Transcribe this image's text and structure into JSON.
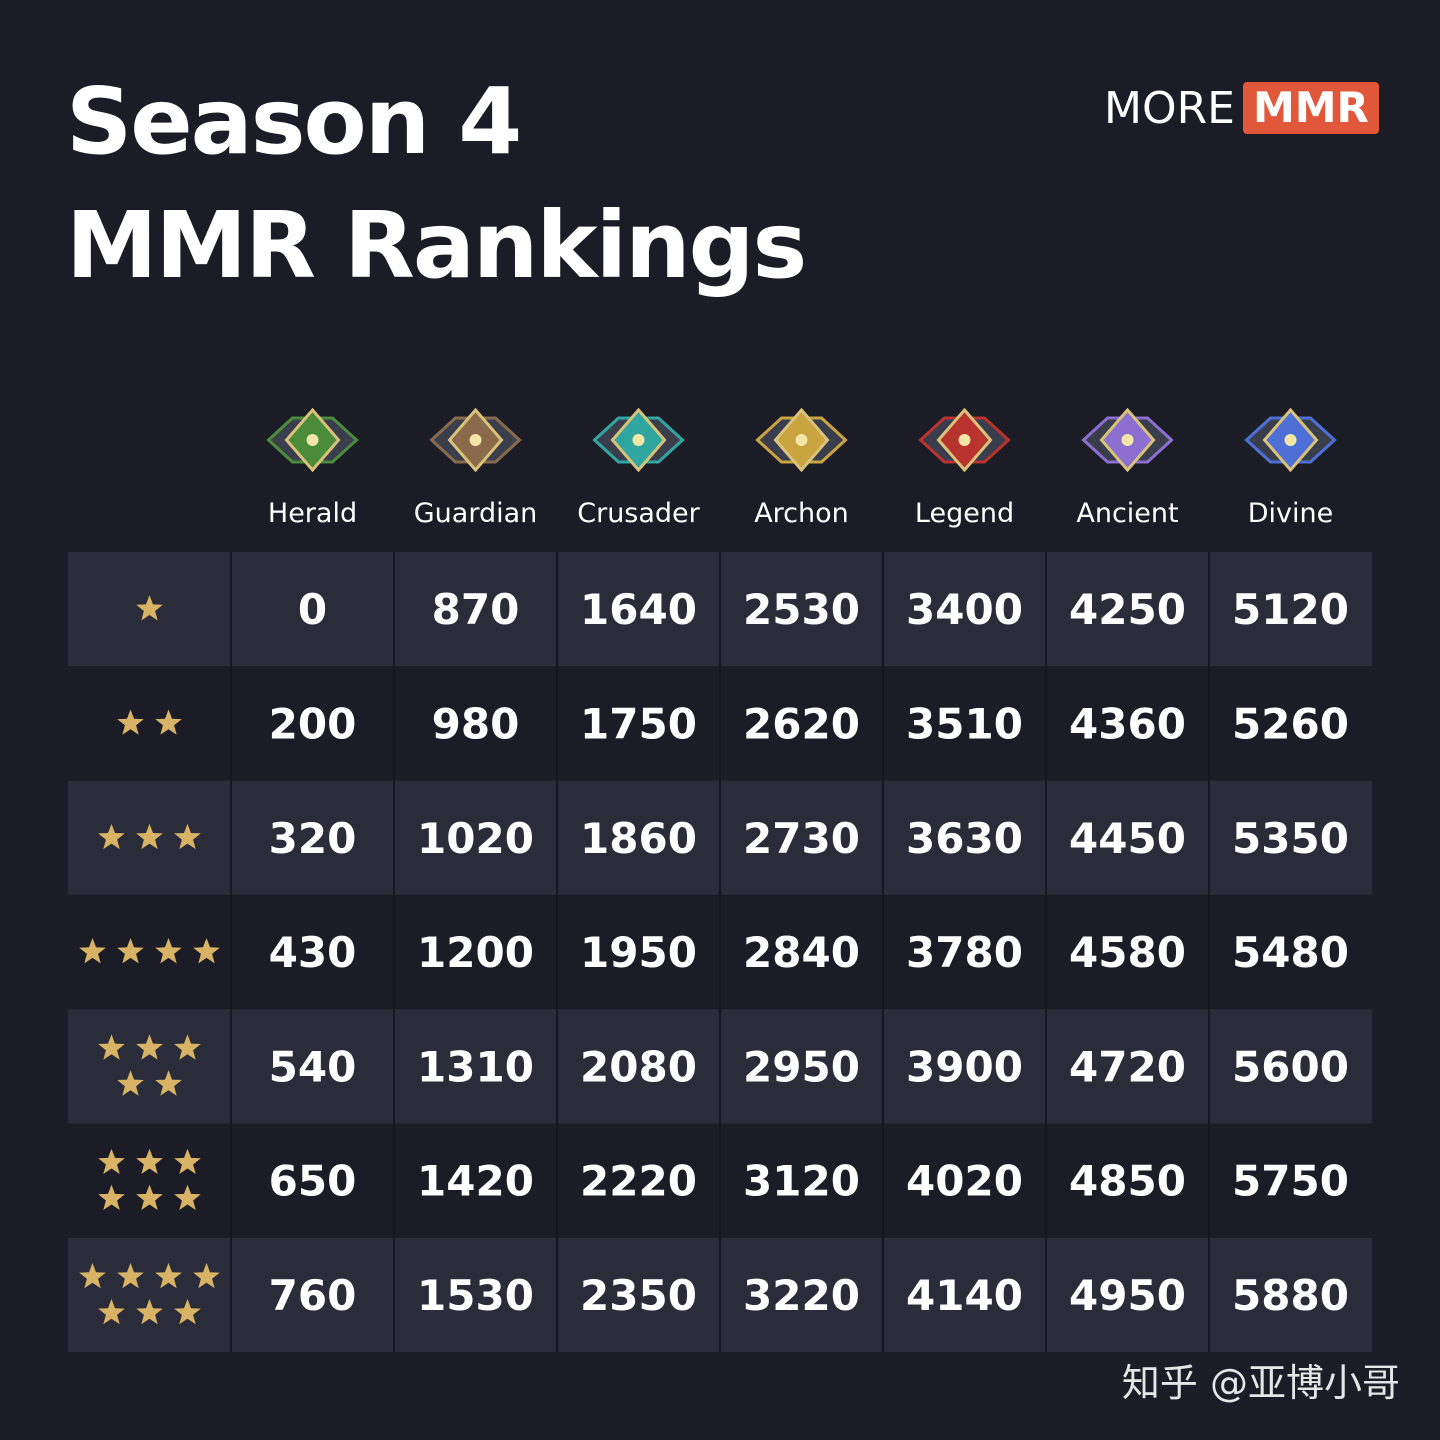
{
  "header": {
    "title_line1": "Season 4",
    "title_line2": "MMR Rankings",
    "logo_word": "MORE",
    "logo_badge": "MMR"
  },
  "table": {
    "columns": [
      "Herald",
      "Guardian",
      "Crusader",
      "Archon",
      "Legend",
      "Ancient",
      "Divine"
    ],
    "stars": [
      1,
      2,
      3,
      4,
      5,
      6,
      7
    ],
    "rows": [
      [
        "0",
        "870",
        "1640",
        "2530",
        "3400",
        "4250",
        "5120"
      ],
      [
        "200",
        "980",
        "1750",
        "2620",
        "3510",
        "4360",
        "5260"
      ],
      [
        "320",
        "1020",
        "1860",
        "2730",
        "3630",
        "4450",
        "5350"
      ],
      [
        "430",
        "1200",
        "1950",
        "2840",
        "3780",
        "4580",
        "5480"
      ],
      [
        "540",
        "1310",
        "2080",
        "2950",
        "3900",
        "4720",
        "5600"
      ],
      [
        "650",
        "1420",
        "2220",
        "3120",
        "4020",
        "4850",
        "5750"
      ],
      [
        "760",
        "1530",
        "2350",
        "3220",
        "4140",
        "4950",
        "5880"
      ]
    ]
  },
  "footer": {
    "watermark": "知乎 @亚博小哥"
  }
}
